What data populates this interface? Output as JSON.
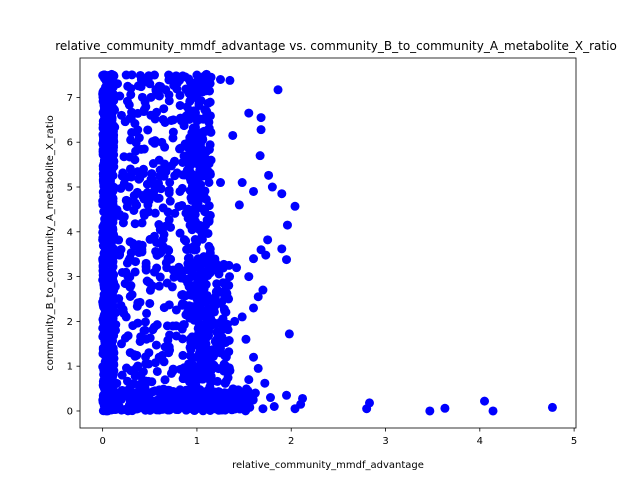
{
  "chart_data": {
    "type": "scatter",
    "title": "relative_community_mmdf_advantage vs. community_B_to_community_A_metabolite_X_ratio",
    "xlabel": "relative_community_mmdf_advantage",
    "ylabel": "community_B_to_community_A_metabolite_X_ratio",
    "xlim": [
      -0.24,
      5.02
    ],
    "ylim": [
      -0.38,
      7.88
    ],
    "xticks": [
      0,
      1,
      2,
      3,
      4,
      5
    ],
    "yticks": [
      0,
      1,
      2,
      3,
      4,
      5,
      6,
      7
    ],
    "grid": false,
    "marker_color": "#0000ff",
    "series": [
      {
        "points": [
          [
            0.02,
            7.5
          ],
          [
            0.12,
            7.48
          ],
          [
            0.25,
            7.5
          ],
          [
            0.4,
            7.49
          ],
          [
            0.55,
            7.5
          ],
          [
            0.7,
            7.5
          ],
          [
            0.85,
            7.48
          ],
          [
            1.0,
            7.5
          ],
          [
            1.15,
            7.45
          ],
          [
            1.25,
            7.4
          ],
          [
            1.35,
            7.38
          ],
          [
            0.05,
            7.1
          ],
          [
            0.3,
            7.2
          ],
          [
            0.6,
            7.25
          ],
          [
            0.95,
            7.3
          ],
          [
            1.1,
            7.15
          ],
          [
            0.02,
            6.8
          ],
          [
            0.2,
            6.6
          ],
          [
            0.45,
            6.9
          ],
          [
            0.75,
            6.5
          ],
          [
            0.98,
            6.7
          ],
          [
            1.0,
            6.2
          ],
          [
            0.03,
            6.0
          ],
          [
            0.35,
            5.8
          ],
          [
            0.6,
            5.6
          ],
          [
            0.9,
            5.9
          ],
          [
            1.02,
            5.5
          ],
          [
            1.15,
            5.6
          ],
          [
            0.05,
            5.2
          ],
          [
            0.28,
            5.0
          ],
          [
            0.52,
            5.3
          ],
          [
            0.82,
            4.9
          ],
          [
            1.0,
            4.8
          ],
          [
            1.25,
            5.1
          ],
          [
            0.04,
            4.5
          ],
          [
            0.22,
            4.2
          ],
          [
            0.48,
            4.6
          ],
          [
            0.72,
            4.1
          ],
          [
            0.97,
            4.3
          ],
          [
            1.05,
            4.0
          ],
          [
            0.02,
            3.8
          ],
          [
            0.18,
            3.5
          ],
          [
            0.42,
            3.7
          ],
          [
            0.68,
            3.2
          ],
          [
            0.99,
            3.6
          ],
          [
            1.2,
            3.3
          ],
          [
            0.03,
            3.0
          ],
          [
            0.3,
            2.8
          ],
          [
            0.55,
            3.1
          ],
          [
            0.85,
            2.6
          ],
          [
            1.01,
            2.9
          ],
          [
            1.3,
            2.7
          ],
          [
            0.05,
            2.3
          ],
          [
            0.25,
            2.1
          ],
          [
            0.5,
            2.4
          ],
          [
            0.78,
            1.9
          ],
          [
            1.0,
            2.2
          ],
          [
            1.4,
            2.0
          ],
          [
            0.02,
            1.7
          ],
          [
            0.2,
            1.5
          ],
          [
            0.45,
            1.8
          ],
          [
            0.7,
            1.3
          ],
          [
            0.96,
            1.6
          ],
          [
            1.25,
            1.4
          ],
          [
            0.04,
            1.1
          ],
          [
            0.3,
            0.9
          ],
          [
            0.6,
            1.2
          ],
          [
            0.88,
            0.8
          ],
          [
            1.02,
            1.0
          ],
          [
            1.35,
            0.9
          ],
          [
            0.02,
            0.5
          ],
          [
            0.15,
            0.4
          ],
          [
            0.4,
            0.6
          ],
          [
            0.65,
            0.3
          ],
          [
            0.95,
            0.5
          ],
          [
            1.2,
            0.4
          ],
          [
            0.03,
            0.05
          ],
          [
            0.2,
            0.02
          ],
          [
            0.5,
            0.08
          ],
          [
            0.8,
            0.03
          ],
          [
            1.0,
            0.05
          ],
          [
            1.3,
            0.02
          ],
          [
            1.5,
            0.1
          ],
          [
            1.7,
            0.05
          ],
          [
            1.55,
            6.65
          ],
          [
            1.68,
            6.55
          ],
          [
            1.68,
            6.28
          ],
          [
            1.86,
            7.17
          ],
          [
            1.38,
            6.15
          ],
          [
            1.67,
            5.7
          ],
          [
            1.48,
            5.1
          ],
          [
            1.76,
            5.26
          ],
          [
            1.8,
            5.0
          ],
          [
            1.6,
            4.9
          ],
          [
            1.45,
            4.6
          ],
          [
            1.96,
            4.15
          ],
          [
            2.04,
            4.57
          ],
          [
            1.9,
            4.85
          ],
          [
            1.75,
            3.82
          ],
          [
            1.68,
            3.6
          ],
          [
            1.73,
            3.48
          ],
          [
            1.9,
            3.62
          ],
          [
            1.95,
            3.38
          ],
          [
            1.6,
            3.4
          ],
          [
            1.42,
            3.2
          ],
          [
            1.55,
            3.0
          ],
          [
            1.65,
            2.55
          ],
          [
            1.7,
            2.7
          ],
          [
            1.6,
            2.3
          ],
          [
            1.48,
            2.1
          ],
          [
            1.98,
            1.72
          ],
          [
            1.52,
            1.6
          ],
          [
            1.6,
            1.2
          ],
          [
            1.65,
            0.95
          ],
          [
            1.55,
            0.7
          ],
          [
            1.72,
            0.62
          ],
          [
            1.62,
            0.4
          ],
          [
            1.78,
            0.3
          ],
          [
            1.95,
            0.35
          ],
          [
            2.12,
            0.28
          ],
          [
            2.04,
            0.05
          ],
          [
            2.1,
            0.15
          ],
          [
            1.82,
            0.1
          ],
          [
            2.8,
            0.05
          ],
          [
            2.83,
            0.18
          ],
          [
            3.47,
            0.0
          ],
          [
            3.63,
            0.06
          ],
          [
            4.05,
            0.22
          ],
          [
            4.14,
            0.0
          ],
          [
            4.77,
            0.08
          ]
        ]
      }
    ]
  }
}
